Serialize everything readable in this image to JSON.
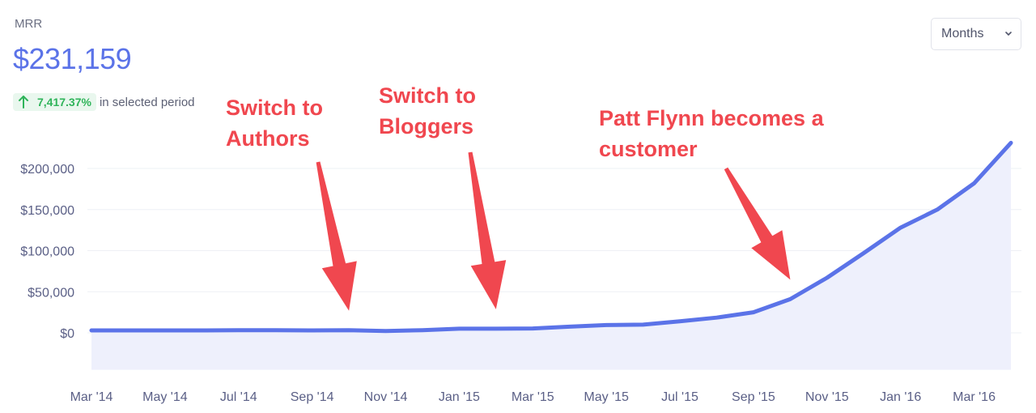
{
  "header": {
    "metric_label": "MRR",
    "metric_value": "$231,159",
    "change_percent": "7,417.37%",
    "change_text": "in selected period",
    "period_select": "Months"
  },
  "colors": {
    "line": "#5b73e8",
    "area": "#eef0fc",
    "positive": "#2fb45a",
    "annotation": "#f0474f"
  },
  "annotations": [
    {
      "lines": [
        "Switch to",
        "Authors"
      ],
      "points_to": "Oct '14"
    },
    {
      "lines": [
        "Switch to",
        "Bloggers"
      ],
      "points_to": "Feb '15"
    },
    {
      "lines": [
        "Patt Flynn becomes a",
        "customer"
      ],
      "points_to": "Oct '15"
    }
  ],
  "chart_data": {
    "type": "area",
    "title": "",
    "xlabel": "",
    "ylabel": "",
    "x": [
      "Mar '14",
      "Apr '14",
      "May '14",
      "Jun '14",
      "Jul '14",
      "Aug '14",
      "Sep '14",
      "Oct '14",
      "Nov '14",
      "Dec '14",
      "Jan '15",
      "Feb '15",
      "Mar '15",
      "Apr '15",
      "May '15",
      "Jun '15",
      "Jul '15",
      "Aug '15",
      "Sep '15",
      "Oct '15",
      "Nov '15",
      "Dec '15",
      "Jan '16",
      "Feb '16",
      "Mar '16",
      "Apr '16"
    ],
    "series": [
      {
        "values": [
          3000,
          3000,
          3000,
          3000,
          3300,
          3300,
          3000,
          3300,
          2300,
          3300,
          5000,
          5000,
          5300,
          7500,
          9500,
          10000,
          14000,
          18500,
          25000,
          41000,
          67000,
          97000,
          128000,
          150000,
          182000,
          231159
        ]
      }
    ],
    "x_tick_labels": [
      "Mar '14",
      "May '14",
      "Jul '14",
      "Sep '14",
      "Nov '14",
      "Jan '15",
      "Mar '15",
      "May '15",
      "Jul '15",
      "Sep '15",
      "Nov '15",
      "Jan '16",
      "Mar '16"
    ],
    "y_tick_labels": [
      "$0",
      "$50,000",
      "$100,000",
      "$150,000",
      "$200,000"
    ],
    "y_ticks": [
      0,
      50000,
      100000,
      150000,
      200000
    ],
    "ylim": [
      -45000,
      250000
    ],
    "grid": true,
    "legend": "none"
  }
}
